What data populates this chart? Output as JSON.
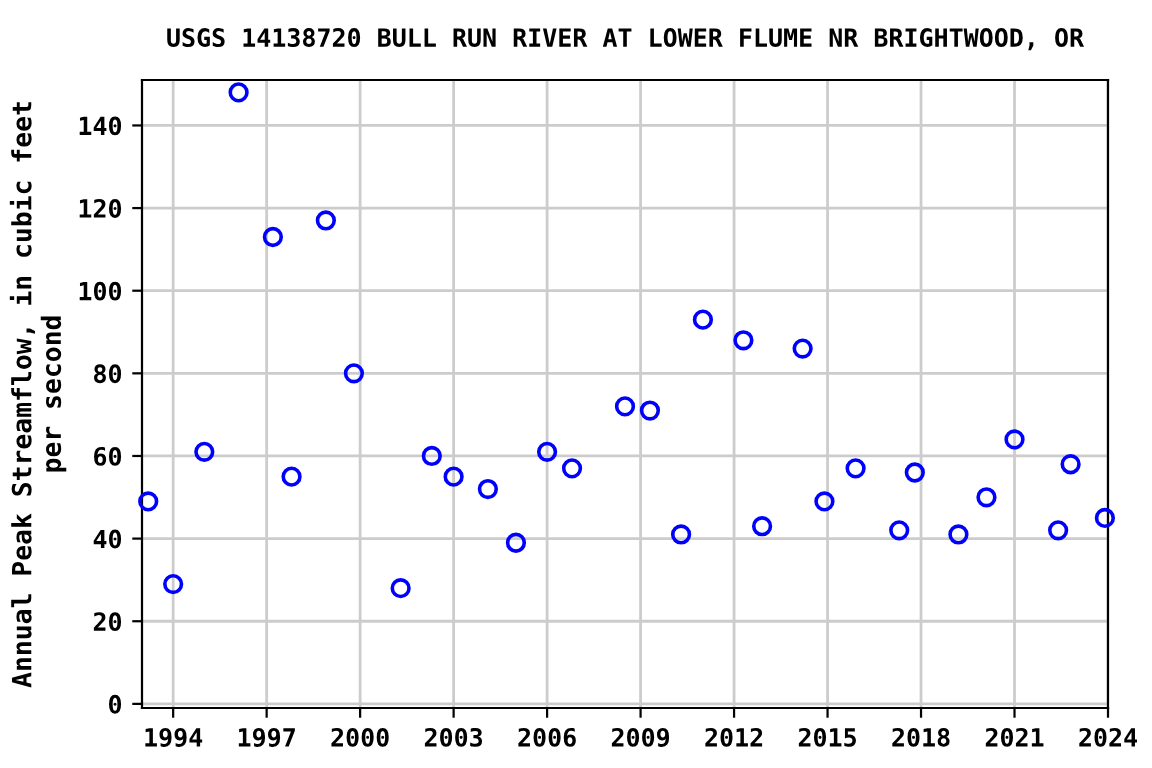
{
  "chart_data": {
    "type": "scatter",
    "title": "USGS 14138720 BULL RUN RIVER AT LOWER FLUME NR BRIGHTWOOD, OR",
    "ylabel": "Annual Peak Streamflow, in cubic feet\nper second",
    "x": [
      1993.2,
      1994.0,
      1995.0,
      1996.1,
      1997.2,
      1997.8,
      1998.9,
      1999.8,
      2001.3,
      2002.3,
      2003.0,
      2004.1,
      2005.0,
      2006.0,
      2006.8,
      2008.5,
      2009.3,
      2010.3,
      2011.0,
      2012.3,
      2012.9,
      2014.2,
      2014.9,
      2015.9,
      2017.3,
      2017.8,
      2019.2,
      2020.1,
      2021.0,
      2022.4,
      2022.8,
      2023.9
    ],
    "series": [
      {
        "color": "#0000ff",
        "values": [
          49,
          29,
          61,
          148,
          113,
          55,
          117,
          80,
          28,
          60,
          55,
          52,
          39,
          61,
          57,
          72,
          71,
          41,
          93,
          88,
          43,
          86,
          49,
          57,
          42,
          56,
          41,
          50,
          64,
          42,
          58,
          45
        ]
      }
    ],
    "xlim": [
      1993,
      2024
    ],
    "xticks": [
      1994,
      1997,
      2000,
      2003,
      2006,
      2009,
      2012,
      2015,
      2018,
      2021,
      2024
    ],
    "ylim": [
      -1,
      151
    ],
    "yticks": [
      0,
      20,
      40,
      60,
      80,
      100,
      120,
      140
    ],
    "grid": true,
    "marker": "circle"
  }
}
